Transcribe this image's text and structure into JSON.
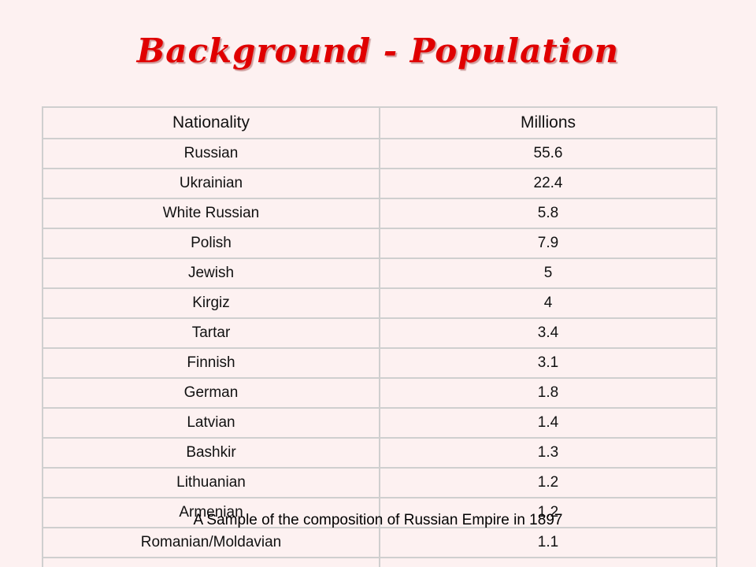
{
  "slide": {
    "title": "Background - Population",
    "caption": "A Sample of the composition of Russian Empire in 1897"
  },
  "table": {
    "headers": [
      "Nationality",
      "Millions"
    ],
    "rows": [
      [
        "Russian",
        "55.6"
      ],
      [
        "Ukrainian",
        "22.4"
      ],
      [
        "White Russian",
        "5.8"
      ],
      [
        "Polish",
        "7.9"
      ],
      [
        "Jewish",
        "5"
      ],
      [
        "Kirgiz",
        "4"
      ],
      [
        "Tartar",
        "3.4"
      ],
      [
        "Finnish",
        "3.1"
      ],
      [
        "German",
        "1.8"
      ],
      [
        "Latvian",
        "1.4"
      ],
      [
        "Bashkir",
        "1.3"
      ],
      [
        "Lithuanian",
        "1.2"
      ],
      [
        "Armenian",
        "1.2"
      ],
      [
        "Romanian/Moldavian",
        "1.1"
      ],
      [
        "",
        ""
      ]
    ]
  },
  "colors": {
    "background": "#fdf1f1",
    "title": "#e00000",
    "table_border": "#cfcfcf"
  }
}
